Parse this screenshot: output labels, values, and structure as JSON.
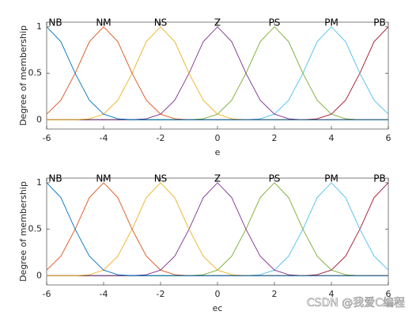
{
  "chart_data": [
    {
      "type": "line",
      "xlabel": "e",
      "ylabel": "Degree of membership",
      "x": [
        -6,
        -5.5,
        -5,
        -4.5,
        -4,
        -3.5,
        -3,
        -2.5,
        -2,
        -1.5,
        -1,
        -0.5,
        0,
        0.5,
        1,
        1.5,
        2,
        2.5,
        3,
        3.5,
        4,
        4.5,
        5,
        5.5,
        6
      ],
      "series": [
        {
          "name": "NB",
          "color": "#0072BD",
          "values": [
            1,
            0.84,
            0.5,
            0.21,
            0.06,
            0.01,
            0,
            0,
            0,
            0,
            0,
            0,
            0,
            0,
            0,
            0,
            0,
            0,
            0,
            0,
            0,
            0,
            0,
            0,
            0
          ]
        },
        {
          "name": "NM",
          "color": "#D95319",
          "values": [
            0.06,
            0.21,
            0.5,
            0.84,
            1,
            0.84,
            0.5,
            0.21,
            0.06,
            0.01,
            0,
            0,
            0,
            0,
            0,
            0,
            0,
            0,
            0,
            0,
            0,
            0,
            0,
            0,
            0
          ]
        },
        {
          "name": "NS",
          "color": "#EDB120",
          "values": [
            0,
            0,
            0,
            0.01,
            0.06,
            0.21,
            0.5,
            0.84,
            1,
            0.84,
            0.5,
            0.21,
            0.06,
            0.01,
            0,
            0,
            0,
            0,
            0,
            0,
            0,
            0,
            0,
            0,
            0
          ]
        },
        {
          "name": "Z",
          "color": "#7E2F8E",
          "values": [
            0,
            0,
            0,
            0,
            0,
            0,
            0,
            0.01,
            0.06,
            0.21,
            0.5,
            0.84,
            1,
            0.84,
            0.5,
            0.21,
            0.06,
            0.01,
            0,
            0,
            0,
            0,
            0,
            0,
            0
          ]
        },
        {
          "name": "PS",
          "color": "#77AC30",
          "values": [
            0,
            0,
            0,
            0,
            0,
            0,
            0,
            0,
            0,
            0,
            0,
            0.01,
            0.06,
            0.21,
            0.5,
            0.84,
            1,
            0.84,
            0.5,
            0.21,
            0.06,
            0.01,
            0,
            0,
            0
          ]
        },
        {
          "name": "PM",
          "color": "#4DBEEE",
          "values": [
            0,
            0,
            0,
            0,
            0,
            0,
            0,
            0,
            0,
            0,
            0,
            0,
            0,
            0,
            0,
            0.01,
            0.06,
            0.21,
            0.5,
            0.84,
            1,
            0.84,
            0.5,
            0.21,
            0.06
          ]
        },
        {
          "name": "PB",
          "color": "#A2142F",
          "values": [
            0,
            0,
            0,
            0,
            0,
            0,
            0,
            0,
            0,
            0,
            0,
            0,
            0,
            0,
            0,
            0,
            0,
            0,
            0,
            0.01,
            0.06,
            0.21,
            0.5,
            0.84,
            1
          ]
        }
      ],
      "xlim": [
        -6,
        6
      ],
      "xticks": [
        -6,
        -4,
        -2,
        0,
        2,
        4,
        6
      ],
      "ylim": [
        -0.1,
        1.05
      ],
      "yticks": [
        0,
        0.5,
        1
      ]
    },
    {
      "type": "line",
      "xlabel": "ec",
      "ylabel": "Degree of membership",
      "x": [
        -6,
        -5.5,
        -5,
        -4.5,
        -4,
        -3.5,
        -3,
        -2.5,
        -2,
        -1.5,
        -1,
        -0.5,
        0,
        0.5,
        1,
        1.5,
        2,
        2.5,
        3,
        3.5,
        4,
        4.5,
        5,
        5.5,
        6
      ],
      "series": [
        {
          "name": "NB",
          "color": "#0072BD",
          "values": [
            1,
            0.84,
            0.5,
            0.21,
            0.06,
            0.01,
            0,
            0,
            0,
            0,
            0,
            0,
            0,
            0,
            0,
            0,
            0,
            0,
            0,
            0,
            0,
            0,
            0,
            0,
            0
          ]
        },
        {
          "name": "NM",
          "color": "#D95319",
          "values": [
            0.06,
            0.21,
            0.5,
            0.84,
            1,
            0.84,
            0.5,
            0.21,
            0.06,
            0.01,
            0,
            0,
            0,
            0,
            0,
            0,
            0,
            0,
            0,
            0,
            0,
            0,
            0,
            0,
            0
          ]
        },
        {
          "name": "NS",
          "color": "#EDB120",
          "values": [
            0,
            0,
            0,
            0.01,
            0.06,
            0.21,
            0.5,
            0.84,
            1,
            0.84,
            0.5,
            0.21,
            0.06,
            0.01,
            0,
            0,
            0,
            0,
            0,
            0,
            0,
            0,
            0,
            0,
            0
          ]
        },
        {
          "name": "Z",
          "color": "#7E2F8E",
          "values": [
            0,
            0,
            0,
            0,
            0,
            0,
            0,
            0.01,
            0.06,
            0.21,
            0.5,
            0.84,
            1,
            0.84,
            0.5,
            0.21,
            0.06,
            0.01,
            0,
            0,
            0,
            0,
            0,
            0,
            0
          ]
        },
        {
          "name": "PS",
          "color": "#77AC30",
          "values": [
            0,
            0,
            0,
            0,
            0,
            0,
            0,
            0,
            0,
            0,
            0,
            0.01,
            0.06,
            0.21,
            0.5,
            0.84,
            1,
            0.84,
            0.5,
            0.21,
            0.06,
            0.01,
            0,
            0,
            0
          ]
        },
        {
          "name": "PM",
          "color": "#4DBEEE",
          "values": [
            0,
            0,
            0,
            0,
            0,
            0,
            0,
            0,
            0,
            0,
            0,
            0,
            0,
            0,
            0,
            0.01,
            0.06,
            0.21,
            0.5,
            0.84,
            1,
            0.84,
            0.5,
            0.21,
            0.06
          ]
        },
        {
          "name": "PB",
          "color": "#A2142F",
          "values": [
            0,
            0,
            0,
            0,
            0,
            0,
            0,
            0,
            0,
            0,
            0,
            0,
            0,
            0,
            0,
            0,
            0,
            0,
            0,
            0.01,
            0.06,
            0.21,
            0.5,
            0.84,
            1
          ]
        }
      ],
      "xlim": [
        -6,
        6
      ],
      "xticks": [
        -6,
        -4,
        -2,
        0,
        2,
        4,
        6
      ],
      "ylim": [
        -0.1,
        1.05
      ],
      "yticks": [
        0,
        0.5,
        1
      ]
    }
  ],
  "watermark": "CSDN @我爱C编程"
}
